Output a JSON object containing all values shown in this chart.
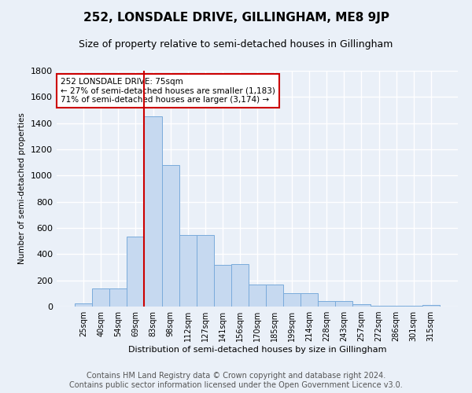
{
  "title": "252, LONSDALE DRIVE, GILLINGHAM, ME8 9JP",
  "subtitle": "Size of property relative to semi-detached houses in Gillingham",
  "xlabel": "Distribution of semi-detached houses by size in Gillingham",
  "ylabel": "Number of semi-detached properties",
  "categories": [
    "25sqm",
    "40sqm",
    "54sqm",
    "69sqm",
    "83sqm",
    "98sqm",
    "112sqm",
    "127sqm",
    "141sqm",
    "156sqm",
    "170sqm",
    "185sqm",
    "199sqm",
    "214sqm",
    "228sqm",
    "243sqm",
    "257sqm",
    "272sqm",
    "286sqm",
    "301sqm",
    "315sqm"
  ],
  "values": [
    25,
    140,
    140,
    535,
    1450,
    1080,
    545,
    545,
    320,
    325,
    170,
    170,
    100,
    100,
    45,
    45,
    20,
    5,
    5,
    5,
    15
  ],
  "bar_color": "#c6d9f0",
  "bar_edge_color": "#7aabdb",
  "vline_color": "#cc0000",
  "annotation_text": "252 LONSDALE DRIVE: 75sqm\n← 27% of semi-detached houses are smaller (1,183)\n71% of semi-detached houses are larger (3,174) →",
  "annotation_box_color": "#ffffff",
  "annotation_box_edge": "#cc0000",
  "ylim": [
    0,
    1800
  ],
  "yticks": [
    0,
    200,
    400,
    600,
    800,
    1000,
    1200,
    1400,
    1600,
    1800
  ],
  "background_color": "#eaf0f8",
  "grid_color": "#ffffff",
  "footer_line1": "Contains HM Land Registry data © Crown copyright and database right 2024.",
  "footer_line2": "Contains public sector information licensed under the Open Government Licence v3.0.",
  "title_fontsize": 11,
  "subtitle_fontsize": 9,
  "footer_fontsize": 7
}
